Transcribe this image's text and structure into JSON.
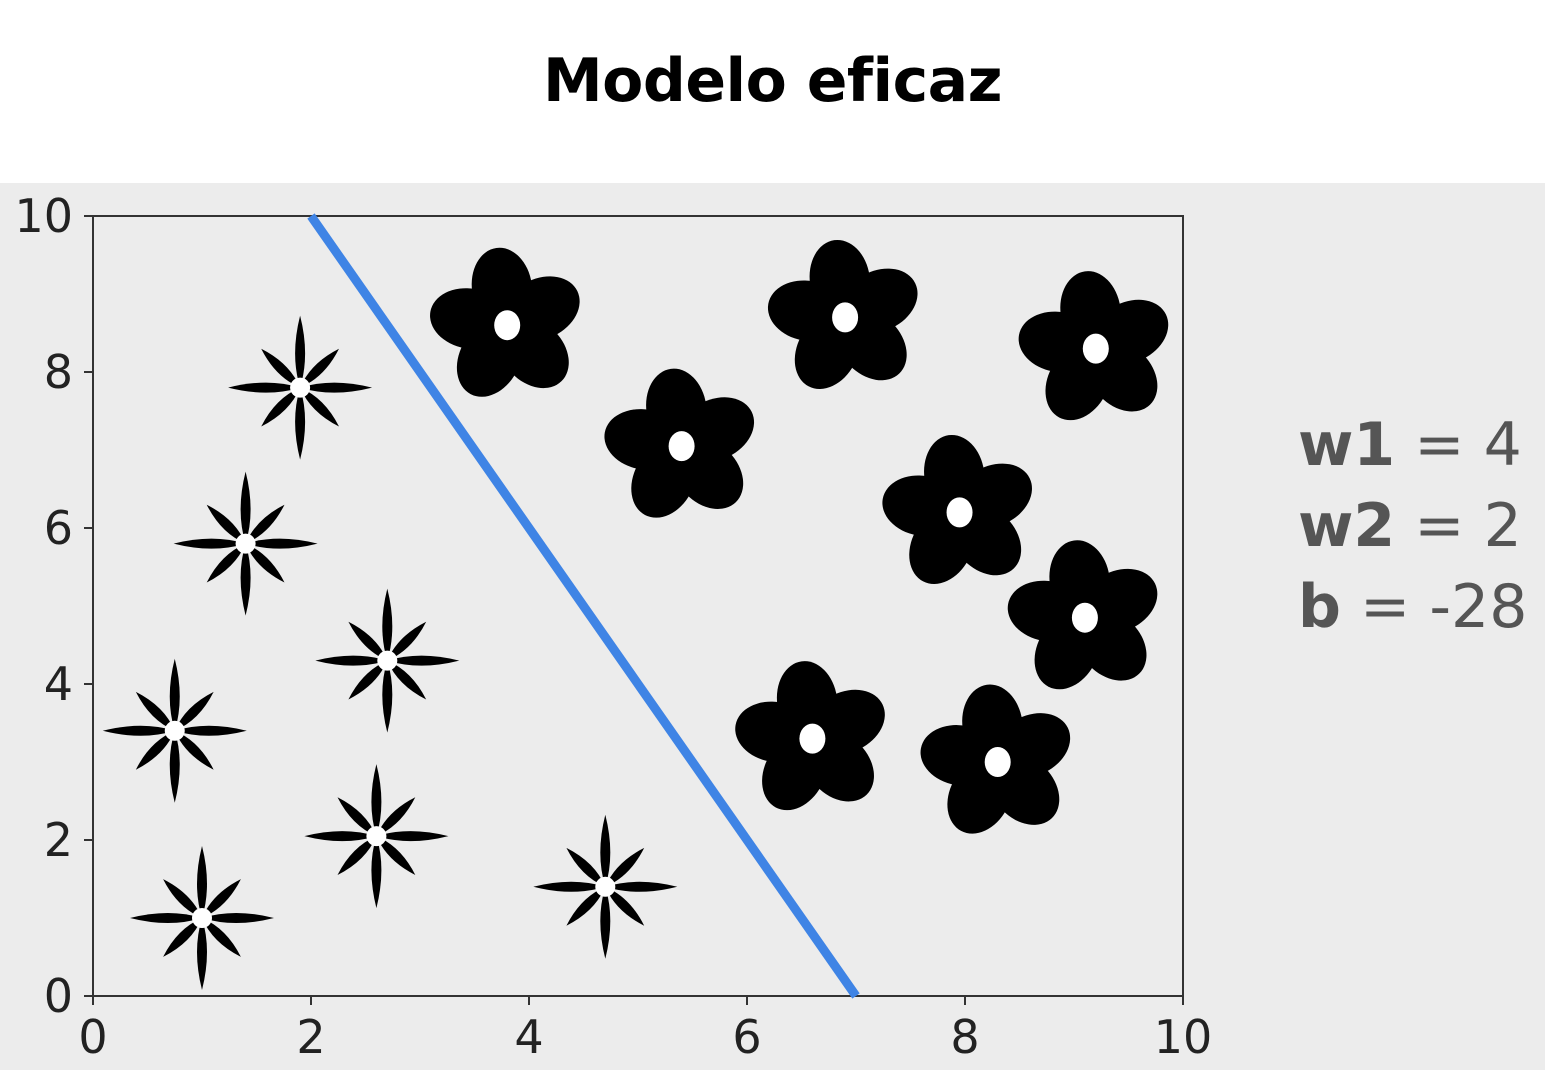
{
  "title": "Modelo eficaz",
  "chart_data": {
    "type": "scatter",
    "title": "",
    "xlabel": "",
    "ylabel": "",
    "xlim": [
      0,
      10
    ],
    "ylim": [
      0,
      10
    ],
    "xticks": [
      "0",
      "2",
      "4",
      "6",
      "8",
      "10"
    ],
    "yticks": [
      "0",
      "2",
      "4",
      "6",
      "8",
      "10"
    ],
    "grid": false,
    "series": [
      {
        "marker": "star-flower-icon",
        "color": "#000000",
        "points": [
          {
            "x": 1.9,
            "y": 7.8
          },
          {
            "x": 1.4,
            "y": 5.8
          },
          {
            "x": 2.7,
            "y": 4.3
          },
          {
            "x": 0.75,
            "y": 3.4
          },
          {
            "x": 2.6,
            "y": 2.05
          },
          {
            "x": 1.0,
            "y": 1.0
          },
          {
            "x": 4.7,
            "y": 1.4
          }
        ]
      },
      {
        "marker": "round-flower-icon",
        "color": "#000000",
        "points": [
          {
            "x": 3.8,
            "y": 8.6
          },
          {
            "x": 6.9,
            "y": 8.7
          },
          {
            "x": 9.2,
            "y": 8.3
          },
          {
            "x": 5.4,
            "y": 7.05
          },
          {
            "x": 7.95,
            "y": 6.2
          },
          {
            "x": 9.1,
            "y": 4.85
          },
          {
            "x": 6.6,
            "y": 3.3
          },
          {
            "x": 8.3,
            "y": 3.0
          }
        ]
      }
    ],
    "lines": [
      {
        "color": "#3f84e5",
        "x": [
          2,
          7
        ],
        "y": [
          10,
          0
        ]
      }
    ]
  },
  "params": [
    {
      "name": "w1",
      "eq": " = ",
      "value": "4"
    },
    {
      "name": "w2",
      "eq": " = ",
      "value": "2"
    },
    {
      "name": "b",
      "eq": " = ",
      "value": "-28"
    }
  ]
}
